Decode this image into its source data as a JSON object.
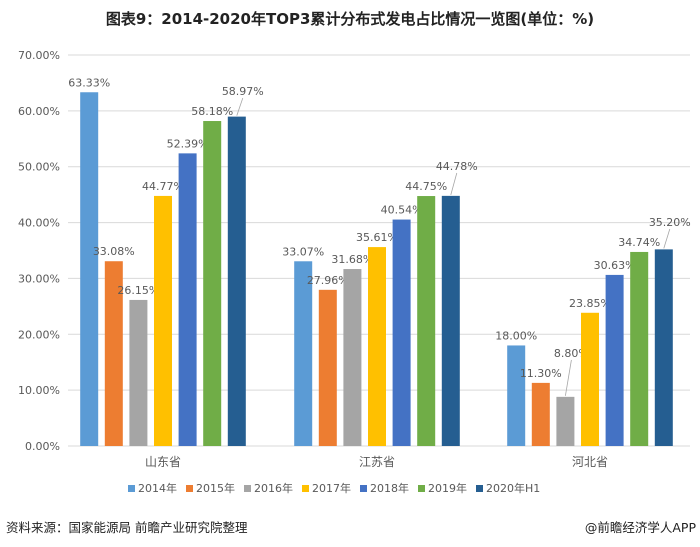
{
  "title": "图表9：2014-2020年TOP3累计分布式发电占比情况一览图(单位：%)",
  "source": "资料来源：国家能源局 前瞻产业研究院整理",
  "credit": "@前瞻经济学人APP",
  "chart_data": {
    "type": "bar",
    "title": "图表9：2014-2020年TOP3累计分布式发电占比情况一览图(单位：%)",
    "categories": [
      "山东省",
      "江苏省",
      "河北省"
    ],
    "series": [
      {
        "name": "2014年",
        "color": "#5B9BD5",
        "values": [
          63.33,
          33.07,
          18.0
        ]
      },
      {
        "name": "2015年",
        "color": "#ED7D31",
        "values": [
          33.08,
          27.96,
          11.3
        ]
      },
      {
        "name": "2016年",
        "color": "#A5A5A5",
        "values": [
          26.15,
          31.68,
          8.8
        ]
      },
      {
        "name": "2017年",
        "color": "#FFC000",
        "values": [
          44.77,
          35.61,
          23.85
        ]
      },
      {
        "name": "2018年",
        "color": "#4472C4",
        "values": [
          52.39,
          40.54,
          30.63
        ]
      },
      {
        "name": "2019年",
        "color": "#70AD47",
        "values": [
          58.18,
          44.75,
          34.74
        ]
      },
      {
        "name": "2020年H1",
        "color": "#255E91",
        "values": [
          58.97,
          44.78,
          35.2
        ]
      }
    ],
    "yticks": [
      "0.00%",
      "10.00%",
      "20.00%",
      "30.00%",
      "40.00%",
      "50.00%",
      "60.00%",
      "70.00%"
    ],
    "ylim": [
      0,
      70
    ],
    "grid": true,
    "legend": "bottom",
    "value_format": "percent-2dp"
  }
}
